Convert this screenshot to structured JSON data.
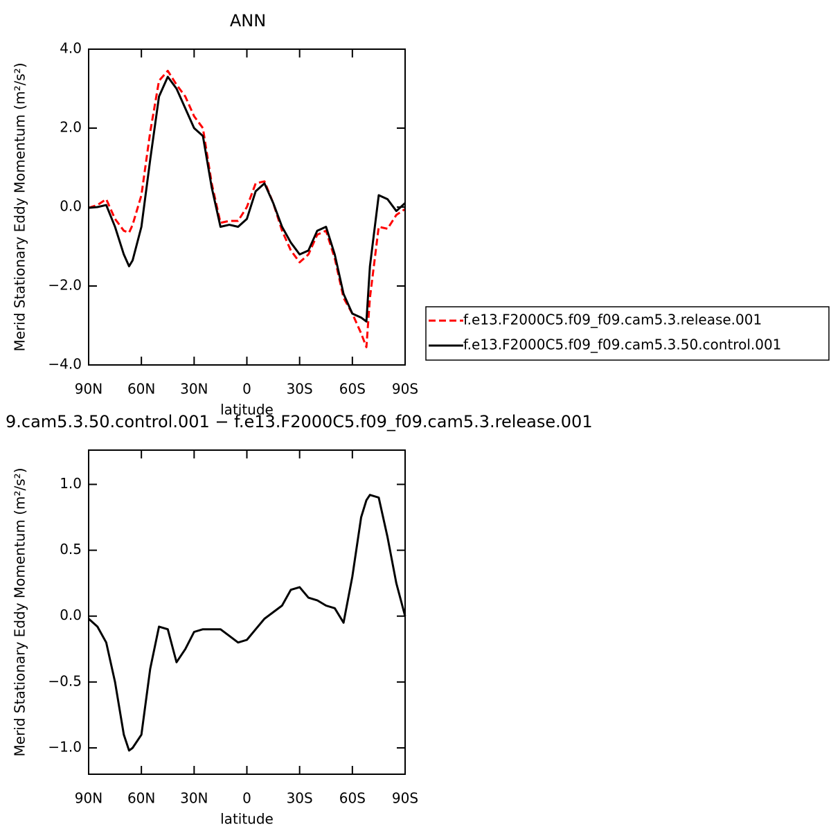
{
  "chart_data": [
    {
      "type": "line",
      "title": "ANN",
      "xlabel": "latitude",
      "ylabel": "Merid Stationary Eddy Momentum (m²/s²)",
      "x": [
        90,
        85,
        80,
        75,
        70,
        67,
        65,
        60,
        55,
        50,
        45,
        40,
        35,
        30,
        25,
        20,
        15,
        10,
        5,
        0,
        -5,
        -10,
        -15,
        -20,
        -25,
        -30,
        -35,
        -40,
        -45,
        -50,
        -55,
        -60,
        -65,
        -68,
        -70,
        -75,
        -80,
        -85,
        -90
      ],
      "xlim": [
        90,
        -90
      ],
      "xticks": [
        {
          "value": 90,
          "label": "90N"
        },
        {
          "value": 60,
          "label": "60N"
        },
        {
          "value": 30,
          "label": "30N"
        },
        0,
        {
          "value": -30,
          "label": "30S"
        },
        {
          "value": -60,
          "label": "60S"
        },
        {
          "value": -90,
          "label": "90S"
        }
      ],
      "ylim": [
        -4,
        4
      ],
      "yticks": [
        {
          "value": -4,
          "label": "−4.0"
        },
        {
          "value": -2,
          "label": "−2.0"
        },
        {
          "value": 0,
          "label": "0.0"
        },
        {
          "value": 2,
          "label": "2.0"
        },
        {
          "value": 4,
          "label": "4.0"
        }
      ],
      "legend": "right",
      "series": [
        {
          "name": "f.e13.F2000C5.f09_f09.cam5.3.release.001",
          "color": "#ff0000",
          "line_style": "dashed",
          "values": [
            -0.02,
            0.05,
            0.2,
            -0.3,
            -0.6,
            -0.65,
            -0.45,
            0.3,
            1.9,
            3.2,
            3.45,
            3.1,
            2.8,
            2.3,
            2.0,
            0.6,
            -0.4,
            -0.35,
            -0.35,
            0.0,
            0.6,
            0.65,
            0.1,
            -0.6,
            -1.1,
            -1.4,
            -1.2,
            -0.7,
            -0.6,
            -1.3,
            -2.3,
            -2.7,
            -3.2,
            -3.55,
            -2.3,
            -0.5,
            -0.55,
            -0.2,
            -0.05
          ]
        },
        {
          "name": "f.e13.F2000C5.f09_f09.cam5.3.50.control.001",
          "color": "#000000",
          "line_style": "solid",
          "values": [
            -0.02,
            0.0,
            0.05,
            -0.5,
            -1.2,
            -1.5,
            -1.35,
            -0.5,
            1.2,
            2.8,
            3.3,
            3.0,
            2.5,
            2.0,
            1.8,
            0.5,
            -0.5,
            -0.45,
            -0.5,
            -0.3,
            0.4,
            0.6,
            0.1,
            -0.5,
            -0.9,
            -1.2,
            -1.1,
            -0.6,
            -0.5,
            -1.2,
            -2.2,
            -2.7,
            -2.8,
            -2.9,
            -1.5,
            0.3,
            0.2,
            -0.1,
            0.1
          ]
        }
      ]
    },
    {
      "type": "line",
      "title": "9.cam5.3.50.control.001 − f.e13.F2000C5.f09_f09.cam5.3.release.001",
      "xlabel": "latitude",
      "ylabel": "Merid Stationary Eddy Momentum (m²/s²)",
      "x": [
        90,
        85,
        80,
        75,
        70,
        67,
        65,
        60,
        55,
        50,
        45,
        40,
        35,
        30,
        25,
        20,
        15,
        10,
        5,
        0,
        -5,
        -10,
        -15,
        -20,
        -25,
        -30,
        -35,
        -40,
        -45,
        -50,
        -55,
        -60,
        -65,
        -68,
        -70,
        -75,
        -80,
        -85,
        -90
      ],
      "xlim": [
        90,
        -90
      ],
      "xticks": [
        {
          "value": 90,
          "label": "90N"
        },
        {
          "value": 60,
          "label": "60N"
        },
        {
          "value": 30,
          "label": "30N"
        },
        0,
        {
          "value": -30,
          "label": "30S"
        },
        {
          "value": -60,
          "label": "60S"
        },
        {
          "value": -90,
          "label": "90S"
        }
      ],
      "ylim": [
        -1.2,
        1.26
      ],
      "yticks": [
        {
          "value": -1,
          "label": "−1.0"
        },
        {
          "value": -0.5,
          "label": "−0.5"
        },
        {
          "value": 0,
          "label": "0.0"
        },
        {
          "value": 0.5,
          "label": "0.5"
        },
        {
          "value": 1,
          "label": "1.0"
        }
      ],
      "series": [
        {
          "color": "#000000",
          "line_style": "solid",
          "values": [
            -0.02,
            -0.08,
            -0.2,
            -0.5,
            -0.9,
            -1.02,
            -1.0,
            -0.9,
            -0.4,
            -0.08,
            -0.1,
            -0.35,
            -0.25,
            -0.12,
            -0.1,
            -0.1,
            -0.1,
            -0.15,
            -0.2,
            -0.18,
            -0.1,
            -0.02,
            0.03,
            0.08,
            0.2,
            0.22,
            0.14,
            0.12,
            0.08,
            0.06,
            -0.05,
            0.3,
            0.75,
            0.88,
            0.92,
            0.9,
            0.6,
            0.25,
            0.0
          ]
        }
      ]
    }
  ]
}
